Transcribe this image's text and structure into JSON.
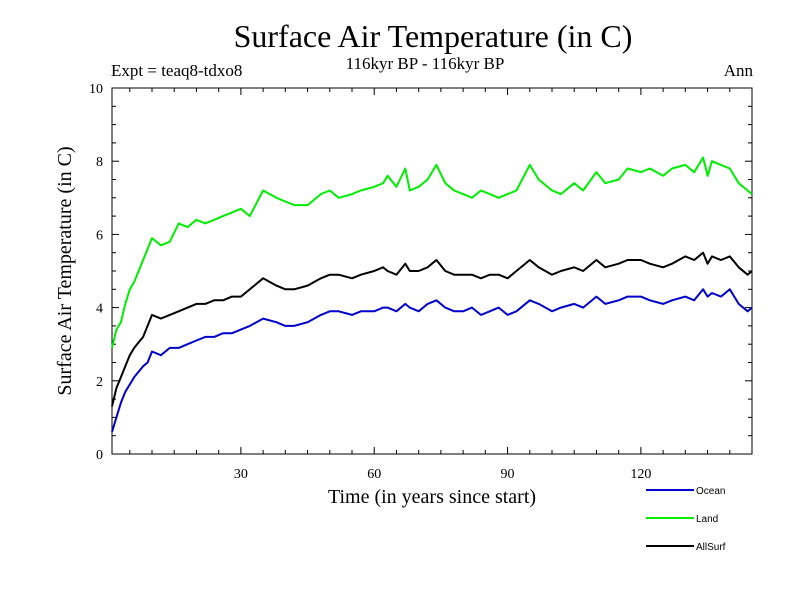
{
  "header": {
    "title": "Surface Air Temperature (in C)",
    "subtitle": "116kyr BP - 116kyr BP",
    "left_label": "Expt = teaq8-tdxo8",
    "right_label": "Ann"
  },
  "chart_data": {
    "type": "line",
    "title": "Surface Air Temperature (in C)",
    "subtitle": "116kyr BP - 116kyr BP",
    "xlabel": "Time (in years since start)",
    "ylabel": "Surface Air Temperature (in C)",
    "xlim": [
      1,
      145
    ],
    "ylim": [
      0,
      10
    ],
    "xticks": [
      30,
      60,
      90,
      120
    ],
    "xtick_labels": [
      "30",
      "60",
      "90",
      "120"
    ],
    "yticks": [
      0,
      2,
      4,
      6,
      8,
      10
    ],
    "ytick_labels": [
      "0",
      "2",
      "4",
      "6",
      "8",
      "10"
    ],
    "legend_position": "bottom-right",
    "x_years": [
      1,
      2,
      3,
      4,
      5,
      6,
      8,
      9,
      10,
      12,
      14,
      16,
      18,
      20,
      22,
      24,
      26,
      28,
      30,
      32,
      35,
      38,
      40,
      42,
      45,
      48,
      50,
      52,
      55,
      57,
      60,
      62,
      63,
      65,
      67,
      68,
      70,
      72,
      74,
      76,
      78,
      80,
      82,
      84,
      86,
      88,
      90,
      92,
      95,
      97,
      100,
      102,
      105,
      107,
      110,
      112,
      115,
      117,
      120,
      122,
      125,
      127,
      130,
      132,
      134,
      135,
      136,
      138,
      140,
      142,
      144,
      145
    ],
    "series": [
      {
        "name": "Ocean",
        "color": "#0000cc",
        "values": [
          0.6,
          1.0,
          1.4,
          1.7,
          1.9,
          2.1,
          2.4,
          2.5,
          2.8,
          2.7,
          2.9,
          2.9,
          3.0,
          3.1,
          3.2,
          3.2,
          3.3,
          3.3,
          3.4,
          3.5,
          3.7,
          3.6,
          3.5,
          3.5,
          3.6,
          3.8,
          3.9,
          3.9,
          3.8,
          3.9,
          3.9,
          4.0,
          4.0,
          3.9,
          4.1,
          4.0,
          3.9,
          4.1,
          4.2,
          4.0,
          3.9,
          3.9,
          4.0,
          3.8,
          3.9,
          4.0,
          3.8,
          3.9,
          4.2,
          4.1,
          3.9,
          4.0,
          4.1,
          4.0,
          4.3,
          4.1,
          4.2,
          4.3,
          4.3,
          4.2,
          4.1,
          4.2,
          4.3,
          4.2,
          4.5,
          4.3,
          4.4,
          4.3,
          4.5,
          4.1,
          3.9,
          4.0
        ]
      },
      {
        "name": "Land",
        "color": "#00ee00",
        "values": [
          2.9,
          3.4,
          3.6,
          4.1,
          4.5,
          4.7,
          5.3,
          5.6,
          5.9,
          5.7,
          5.8,
          6.3,
          6.2,
          6.4,
          6.3,
          6.4,
          6.5,
          6.6,
          6.7,
          6.5,
          7.2,
          7.0,
          6.9,
          6.8,
          6.8,
          7.1,
          7.2,
          7.0,
          7.1,
          7.2,
          7.3,
          7.4,
          7.6,
          7.3,
          7.8,
          7.2,
          7.3,
          7.5,
          7.9,
          7.4,
          7.2,
          7.1,
          7.0,
          7.2,
          7.1,
          7.0,
          7.1,
          7.2,
          7.9,
          7.5,
          7.2,
          7.1,
          7.4,
          7.2,
          7.7,
          7.4,
          7.5,
          7.8,
          7.7,
          7.8,
          7.6,
          7.8,
          7.9,
          7.7,
          8.1,
          7.6,
          8.0,
          7.9,
          7.8,
          7.4,
          7.2,
          7.1
        ]
      },
      {
        "name": "AllSurf",
        "color": "#000000",
        "values": [
          1.3,
          1.8,
          2.1,
          2.4,
          2.7,
          2.9,
          3.2,
          3.5,
          3.8,
          3.7,
          3.8,
          3.9,
          4.0,
          4.1,
          4.1,
          4.2,
          4.2,
          4.3,
          4.3,
          4.5,
          4.8,
          4.6,
          4.5,
          4.5,
          4.6,
          4.8,
          4.9,
          4.9,
          4.8,
          4.9,
          5.0,
          5.1,
          5.0,
          4.9,
          5.2,
          5.0,
          5.0,
          5.1,
          5.3,
          5.0,
          4.9,
          4.9,
          4.9,
          4.8,
          4.9,
          4.9,
          4.8,
          5.0,
          5.3,
          5.1,
          4.9,
          5.0,
          5.1,
          5.0,
          5.3,
          5.1,
          5.2,
          5.3,
          5.3,
          5.2,
          5.1,
          5.2,
          5.4,
          5.3,
          5.5,
          5.2,
          5.4,
          5.3,
          5.4,
          5.1,
          4.9,
          5.0
        ]
      }
    ]
  }
}
